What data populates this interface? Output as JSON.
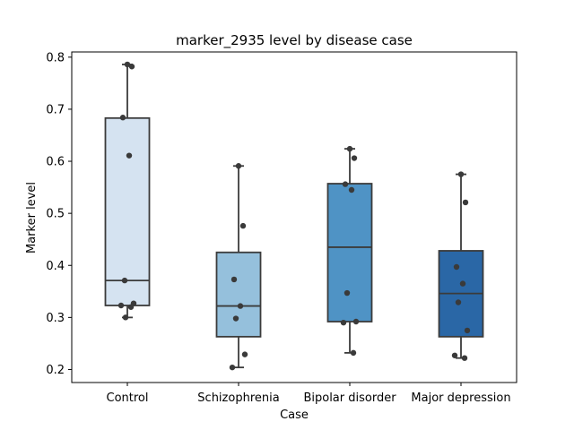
{
  "chart_data": {
    "type": "box",
    "title": "marker_2935 level by disease case",
    "xlabel": "Case",
    "ylabel": "Marker level",
    "ylim": [
      0.175,
      0.81
    ],
    "yticks": [
      0.2,
      0.3,
      0.4,
      0.5,
      0.6,
      0.7,
      0.8
    ],
    "ytick_labels": [
      "0.2",
      "0.3",
      "0.4",
      "0.5",
      "0.6",
      "0.7",
      "0.8"
    ],
    "categories": [
      "Control",
      "Schizophrenia",
      "Bipolar disorder",
      "Major depression"
    ],
    "grid": false,
    "boxes": [
      {
        "category": "Control",
        "color": "#d5e3f1",
        "whisker_low": 0.3,
        "q1": 0.323,
        "median": 0.371,
        "q3": 0.683,
        "whisker_high": 0.786
      },
      {
        "category": "Schizophrenia",
        "color": "#95c0dc",
        "whisker_low": 0.204,
        "q1": 0.263,
        "median": 0.322,
        "q3": 0.425,
        "whisker_high": 0.591
      },
      {
        "category": "Bipolar disorder",
        "color": "#4f93c5",
        "whisker_low": 0.232,
        "q1": 0.292,
        "median": 0.435,
        "q3": 0.557,
        "whisker_high": 0.624
      },
      {
        "category": "Major depression",
        "color": "#2a67a6",
        "whisker_low": 0.222,
        "q1": 0.263,
        "median": 0.346,
        "q3": 0.428,
        "whisker_high": 0.575
      }
    ],
    "points": [
      {
        "category": "Control",
        "y": [
          0.786,
          0.782,
          0.684,
          0.611,
          0.371,
          0.327,
          0.323,
          0.32,
          0.3
        ]
      },
      {
        "category": "Schizophrenia",
        "y": [
          0.591,
          0.476,
          0.373,
          0.322,
          0.298,
          0.229,
          0.204
        ]
      },
      {
        "category": "Bipolar disorder",
        "y": [
          0.624,
          0.606,
          0.556,
          0.545,
          0.347,
          0.292,
          0.29,
          0.232
        ]
      },
      {
        "category": "Major depression",
        "y": [
          0.575,
          0.521,
          0.397,
          0.365,
          0.329,
          0.275,
          0.227,
          0.222
        ]
      }
    ]
  }
}
